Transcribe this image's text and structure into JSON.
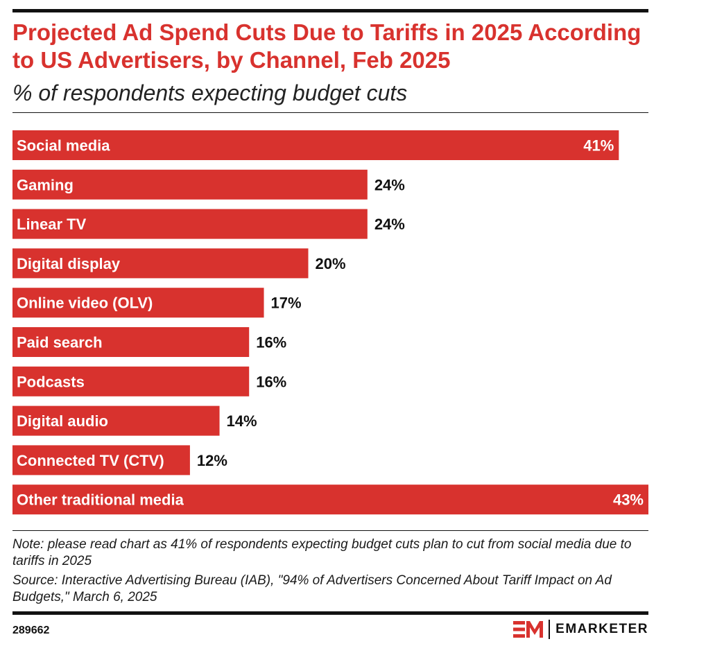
{
  "header": {
    "title": "Projected Ad Spend Cuts Due to Tariffs in 2025 According to US Advertisers, by Channel, Feb 2025",
    "subtitle": "% of respondents expecting budget cuts"
  },
  "chart_data": {
    "type": "bar",
    "orientation": "horizontal",
    "title": "Projected Ad Spend Cuts Due to Tariffs in 2025 According to US Advertisers, by Channel, Feb 2025",
    "subtitle": "% of respondents expecting budget cuts",
    "categories": [
      "Social media",
      "Gaming",
      "Linear TV",
      "Digital display",
      "Online video (OLV)",
      "Paid search",
      "Podcasts",
      "Digital audio",
      "Connected TV (CTV)",
      "Other traditional media"
    ],
    "values": [
      41,
      24,
      24,
      20,
      17,
      16,
      16,
      14,
      12,
      43
    ],
    "value_labels": [
      "41%",
      "24%",
      "24%",
      "20%",
      "17%",
      "16%",
      "16%",
      "14%",
      "12%",
      "43%"
    ],
    "unit": "%",
    "xlim": [
      0,
      43
    ],
    "grid": false,
    "legend": "none",
    "bar_color": "#d8322e"
  },
  "footer": {
    "note": "Note: please read chart as 41% of respondents expecting budget cuts plan to cut from social media due to tariffs in 2025",
    "source": "Source: Interactive Advertising Bureau (IAB), \"94% of Advertisers Concerned About Tariff Impact on Ad Budgets,\" March 6, 2025",
    "chart_id": "289662",
    "brand": "EMARKETER"
  }
}
